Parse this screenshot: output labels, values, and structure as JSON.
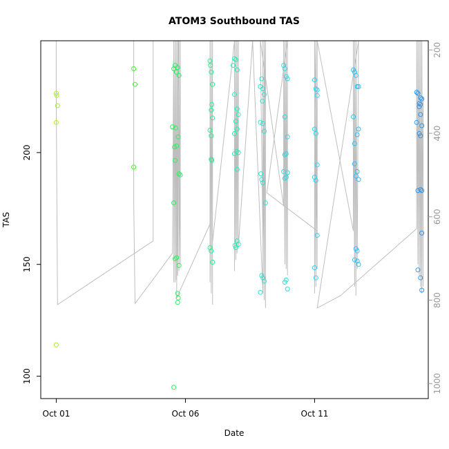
{
  "chart_data": {
    "type": "scatter",
    "title": "ATOM3 Southbound TAS",
    "xlabel": "Date",
    "ylabel": "TAS",
    "x_axis": {
      "type": "date",
      "start": "2008-10-01",
      "range_days": [
        -0.6,
        14.4
      ],
      "ticks": [
        {
          "day": 0,
          "label": "Oct 01"
        },
        {
          "day": 5,
          "label": "Oct 06"
        },
        {
          "day": 10,
          "label": "Oct 11"
        }
      ]
    },
    "ylim": [
      90,
      250
    ],
    "y_ticks": [
      100,
      150,
      200
    ],
    "right_axis": {
      "label": "",
      "ylim": [
        1036,
        178
      ],
      "reversed": true,
      "ticks": [
        200,
        400,
        600,
        800,
        1000
      ]
    },
    "grid": false,
    "legend": "none",
    "point_color_gradient": [
      "#a8ee33",
      "#33ee33",
      "#22eebb",
      "#33ccff",
      "#2a94ee"
    ],
    "line_color": "#bebebe",
    "series": [
      {
        "kind": "points",
        "points": [
          [
            0.0,
            226.5
          ],
          [
            0.02,
            225.5
          ],
          [
            0.05,
            221
          ],
          [
            0.0,
            213.5
          ],
          [
            0.0,
            114
          ],
          [
            3.0,
            237.5
          ],
          [
            3.05,
            230.5
          ],
          [
            3.0,
            193.5
          ],
          [
            4.55,
            237.5
          ],
          [
            4.6,
            239
          ],
          [
            4.65,
            236
          ],
          [
            4.7,
            238
          ],
          [
            4.75,
            234.5
          ],
          [
            4.5,
            211.5
          ],
          [
            4.62,
            211
          ],
          [
            4.58,
            202.5
          ],
          [
            4.66,
            203
          ],
          [
            4.72,
            207
          ],
          [
            4.6,
            196.5
          ],
          [
            4.75,
            190.5
          ],
          [
            4.8,
            190
          ],
          [
            4.55,
            177.5
          ],
          [
            4.6,
            152.5
          ],
          [
            4.66,
            153
          ],
          [
            4.75,
            149.5
          ],
          [
            4.7,
            137
          ],
          [
            4.72,
            135
          ],
          [
            4.7,
            133
          ],
          [
            4.55,
            95
          ],
          [
            5.95,
            241
          ],
          [
            5.97,
            239
          ],
          [
            6.0,
            236
          ],
          [
            6.05,
            230.5
          ],
          [
            6.02,
            221.5
          ],
          [
            6.0,
            219
          ],
          [
            6.05,
            215.5
          ],
          [
            5.95,
            210
          ],
          [
            6.0,
            207.5
          ],
          [
            6.0,
            197
          ],
          [
            6.02,
            196.5
          ],
          [
            5.95,
            157.5
          ],
          [
            6.0,
            156
          ],
          [
            6.05,
            151
          ],
          [
            6.9,
            242
          ],
          [
            6.95,
            241.5
          ],
          [
            6.85,
            239
          ],
          [
            7.0,
            237
          ],
          [
            6.9,
            226
          ],
          [
            7.0,
            219.5
          ],
          [
            7.05,
            217
          ],
          [
            6.95,
            214
          ],
          [
            7.0,
            210.5
          ],
          [
            6.9,
            208.5
          ],
          [
            6.98,
            200.5
          ],
          [
            7.05,
            200
          ],
          [
            6.9,
            199.5
          ],
          [
            7.0,
            192.5
          ],
          [
            7.0,
            160.5
          ],
          [
            7.05,
            159
          ],
          [
            6.92,
            158.5
          ],
          [
            6.95,
            157.5
          ],
          [
            7.95,
            233
          ],
          [
            7.9,
            229.5
          ],
          [
            8.0,
            228.5
          ],
          [
            8.05,
            226
          ],
          [
            7.98,
            223
          ],
          [
            7.9,
            213.5
          ],
          [
            8.0,
            213
          ],
          [
            8.05,
            209.5
          ],
          [
            7.92,
            190.5
          ],
          [
            7.95,
            188
          ],
          [
            8.0,
            186.5
          ],
          [
            8.1,
            177.5
          ],
          [
            7.95,
            145
          ],
          [
            8.0,
            144
          ],
          [
            8.05,
            142.5
          ],
          [
            7.9,
            137.5
          ],
          [
            8.8,
            239
          ],
          [
            8.85,
            237.5
          ],
          [
            8.9,
            234
          ],
          [
            8.95,
            233
          ],
          [
            8.85,
            216
          ],
          [
            8.95,
            207
          ],
          [
            8.9,
            199.5
          ],
          [
            8.85,
            199
          ],
          [
            8.8,
            191.5
          ],
          [
            8.95,
            191
          ],
          [
            8.9,
            189
          ],
          [
            8.85,
            188.5
          ],
          [
            8.9,
            143
          ],
          [
            8.85,
            142
          ],
          [
            8.95,
            139
          ],
          [
            10.0,
            232.5
          ],
          [
            10.05,
            228.5
          ],
          [
            10.1,
            228
          ],
          [
            10.1,
            225.5
          ],
          [
            10.0,
            210.5
          ],
          [
            10.05,
            208.5
          ],
          [
            10.1,
            194.5
          ],
          [
            10.0,
            189
          ],
          [
            10.05,
            187.5
          ],
          [
            10.1,
            163
          ],
          [
            10.0,
            148.5
          ],
          [
            10.05,
            144
          ],
          [
            11.5,
            237
          ],
          [
            11.55,
            236
          ],
          [
            11.6,
            234.5
          ],
          [
            11.65,
            229.5
          ],
          [
            11.7,
            229.5
          ],
          [
            11.5,
            216
          ],
          [
            11.7,
            210.5
          ],
          [
            11.65,
            208
          ],
          [
            11.55,
            204
          ],
          [
            11.55,
            195
          ],
          [
            11.65,
            191.5
          ],
          [
            11.6,
            189.5
          ],
          [
            11.7,
            188
          ],
          [
            11.6,
            157
          ],
          [
            11.65,
            156
          ],
          [
            11.55,
            152
          ],
          [
            11.65,
            151.5
          ],
          [
            11.7,
            150
          ],
          [
            13.95,
            227
          ],
          [
            14.0,
            226.5
          ],
          [
            14.1,
            224.5
          ],
          [
            14.15,
            224
          ],
          [
            14.05,
            222
          ],
          [
            14.1,
            221.5
          ],
          [
            14.05,
            220.5
          ],
          [
            14.1,
            217
          ],
          [
            13.95,
            213.5
          ],
          [
            14.15,
            212
          ],
          [
            14.05,
            208.5
          ],
          [
            14.1,
            207.5
          ],
          [
            14.0,
            183
          ],
          [
            14.1,
            183.5
          ],
          [
            14.15,
            183
          ],
          [
            14.15,
            164
          ],
          [
            14.0,
            147.5
          ],
          [
            14.1,
            144
          ],
          [
            14.15,
            138.5
          ]
        ]
      },
      {
        "kind": "line",
        "path": [
          [
            0.0,
            250
          ],
          [
            0.0,
            225
          ],
          [
            0.05,
            132
          ],
          [
            3.75,
            160.5
          ],
          [
            3.75,
            250
          ],
          [
            3.0,
            250
          ],
          [
            3.0,
            178
          ],
          [
            3.05,
            132.5
          ],
          [
            4.5,
            155
          ],
          [
            4.55,
            250
          ],
          [
            4.55,
            142
          ],
          [
            4.6,
            250
          ],
          [
            4.6,
            142
          ],
          [
            4.65,
            250
          ],
          [
            4.65,
            143
          ],
          [
            4.7,
            250
          ],
          [
            4.7,
            145
          ],
          [
            4.75,
            250
          ],
          [
            4.75,
            147
          ],
          [
            4.8,
            250
          ],
          [
            4.8,
            150
          ],
          [
            4.72,
            250
          ],
          [
            4.66,
            135
          ],
          [
            5.95,
            168
          ],
          [
            5.95,
            250
          ],
          [
            5.95,
            142
          ],
          [
            6.0,
            250
          ],
          [
            6.0,
            137
          ],
          [
            6.05,
            250
          ],
          [
            6.05,
            132
          ],
          [
            6.05,
            160
          ],
          [
            6.9,
            250
          ],
          [
            6.9,
            147
          ],
          [
            6.95,
            250
          ],
          [
            6.95,
            152
          ],
          [
            7.0,
            250
          ],
          [
            7.0,
            155
          ],
          [
            7.05,
            250
          ],
          [
            7.05,
            158
          ],
          [
            7.6,
            250
          ],
          [
            8.0,
            137
          ],
          [
            8.0,
            250
          ],
          [
            8.05,
            134
          ],
          [
            8.05,
            250
          ],
          [
            8.1,
            130.5
          ],
          [
            8.1,
            250
          ],
          [
            8.0,
            160
          ],
          [
            7.9,
            250
          ],
          [
            8.8,
            176
          ],
          [
            8.8,
            250
          ],
          [
            8.85,
            150
          ],
          [
            8.85,
            250
          ],
          [
            8.9,
            148
          ],
          [
            8.9,
            250
          ],
          [
            8.95,
            145
          ],
          [
            8.95,
            250
          ],
          [
            8.15,
            182
          ],
          [
            10.1,
            165
          ],
          [
            10.0,
            250
          ],
          [
            10.0,
            137
          ],
          [
            10.05,
            250
          ],
          [
            10.05,
            140
          ],
          [
            10.1,
            250
          ],
          [
            10.1,
            148
          ],
          [
            10.1,
            250
          ],
          [
            11.5,
            165
          ],
          [
            11.5,
            250
          ],
          [
            11.55,
            140
          ],
          [
            11.55,
            250
          ],
          [
            11.6,
            136
          ],
          [
            11.6,
            250
          ],
          [
            11.65,
            148
          ],
          [
            11.7,
            250
          ],
          [
            10.1,
            130.5
          ],
          [
            11.0,
            136
          ],
          [
            13.95,
            166
          ],
          [
            13.95,
            250
          ],
          [
            14.0,
            150
          ],
          [
            14.0,
            250
          ],
          [
            14.05,
            145
          ],
          [
            14.05,
            250
          ],
          [
            14.1,
            140
          ],
          [
            14.1,
            250
          ],
          [
            14.15,
            137
          ],
          [
            14.15,
            250
          ],
          [
            14.2,
            140
          ],
          [
            14.2,
            225
          ]
        ]
      }
    ]
  }
}
